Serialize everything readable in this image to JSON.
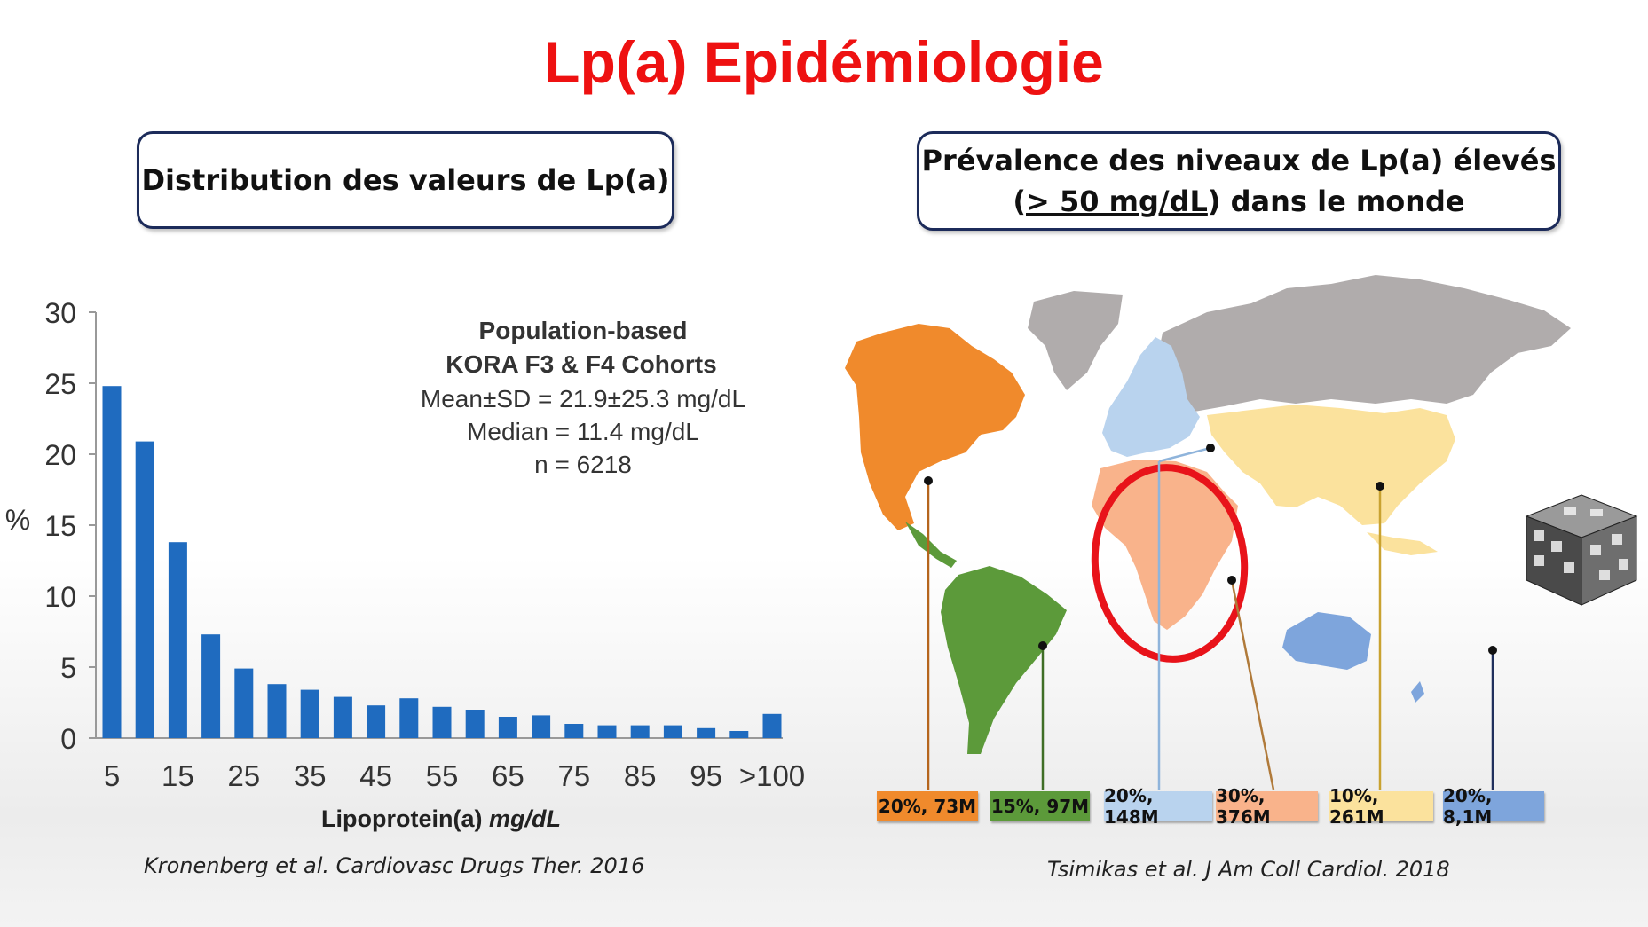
{
  "title": "Lp(a) Epidémiologie",
  "left_panel": {
    "box_title": "Distribution des valeurs de Lp(a)",
    "citation": "Kronenberg et al. Cardiovasc Drugs Ther. 2016"
  },
  "right_panel": {
    "box_title_line1": "Prévalence des niveaux de Lp(a) élevés",
    "box_title_line2_open": "(",
    "box_title_line2_underlined": "> 50 mg/dL",
    "box_title_line2_rest": ") dans le monde",
    "citation": "Tsimikas et al. J Am Coll Cardiol. 2018",
    "regions": [
      {
        "label": "20%, 73M",
        "color": "#f08a2c",
        "line": "#b5651d"
      },
      {
        "label": "15%, 97M",
        "color": "#5c9a3a",
        "line": "#3f6e26"
      },
      {
        "label": "20%, 148M",
        "color": "#b9d3ee",
        "line": "#8fb4db"
      },
      {
        "label": "30%, 376M",
        "color": "#f9b38b",
        "line": "#b07a3a"
      },
      {
        "label": "10%, 261M",
        "color": "#fbe29d",
        "line": "#c9a230"
      },
      {
        "label": "20%, 8,1M",
        "color": "#7ea5dc",
        "line": "#1f2f5c"
      }
    ],
    "other_color": "#b0acac",
    "highlight_color": "#e8131a"
  },
  "chart_data": {
    "type": "bar",
    "categories": [
      "5",
      "10",
      "15",
      "20",
      "25",
      "30",
      "35",
      "40",
      "45",
      "50",
      "55",
      "60",
      "65",
      "70",
      "75",
      "80",
      "85",
      "90",
      "95",
      "100",
      ">100"
    ],
    "tick_labels": [
      "5",
      "15",
      "25",
      "35",
      "45",
      "55",
      "65",
      "75",
      "85",
      "95",
      ">100"
    ],
    "values": [
      24.8,
      20.9,
      13.8,
      7.3,
      4.9,
      3.8,
      3.4,
      2.9,
      2.3,
      2.8,
      2.2,
      2.0,
      1.5,
      1.6,
      1.0,
      0.9,
      0.9,
      0.9,
      0.7,
      0.5,
      1.7
    ],
    "ylabel": "%",
    "xlabel_plain": "Lipoprotein(a) ",
    "xlabel_italic": "mg/dL",
    "ylim": [
      0,
      30
    ],
    "yticks": [
      "0",
      "5",
      "10",
      "15",
      "20",
      "25",
      "30"
    ],
    "bar_color": "#1f6bbf",
    "annotations": [
      "Population-based",
      "KORA F3 & F4 Cohorts",
      "Mean±SD = 21.9±25.3 mg/dL",
      "Median = 11.4 mg/dL",
      "n = 6218"
    ]
  }
}
